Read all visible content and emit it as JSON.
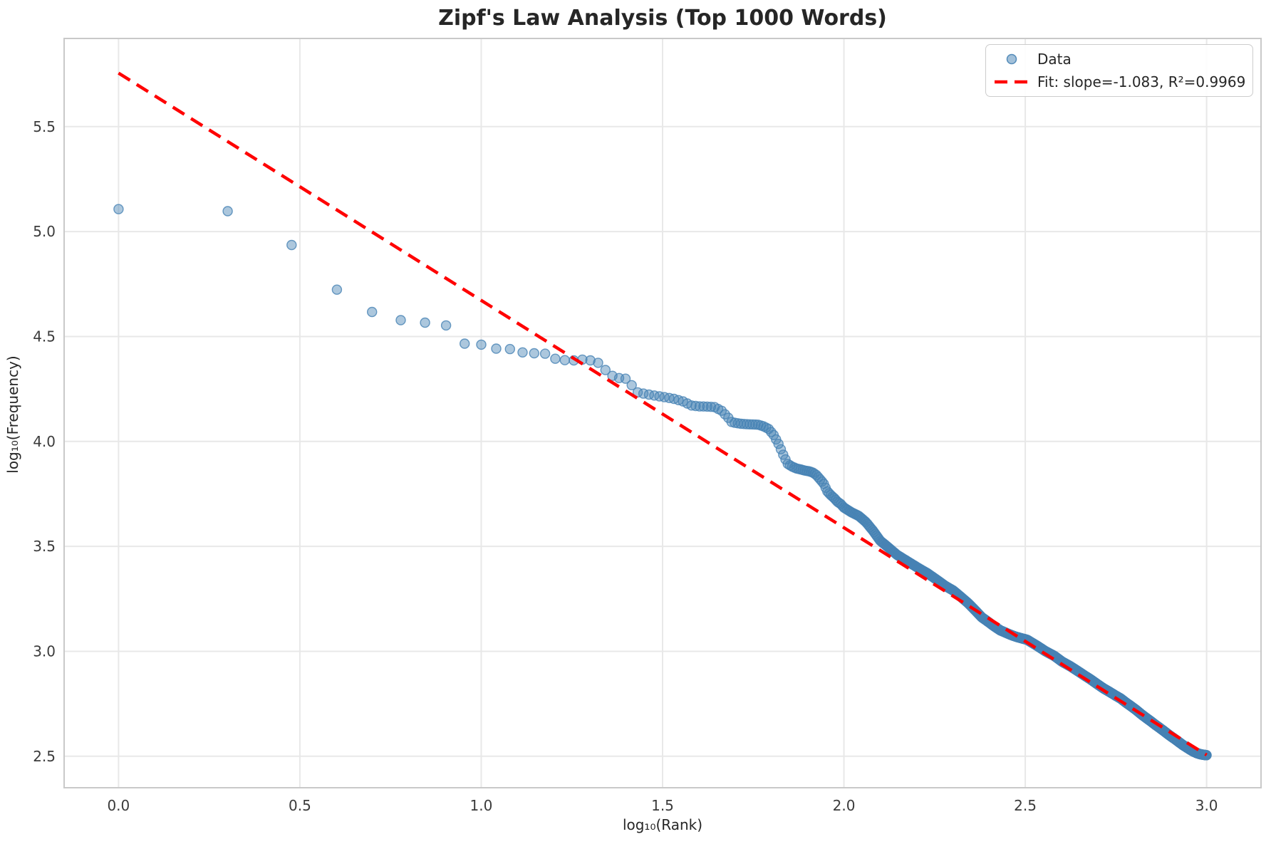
{
  "title": "Zipf's Law Analysis (Top 1000 Words)",
  "chart_data": {
    "type": "scatter",
    "title": "Zipf's Law Analysis (Top 1000 Words)",
    "xlabel": "log₁₀(Rank)",
    "ylabel": "log₁₀(Frequency)",
    "xlim": [
      -0.15,
      3.15
    ],
    "ylim": [
      2.35,
      5.92
    ],
    "x_ticks": [
      0.0,
      0.5,
      1.0,
      1.5,
      2.0,
      2.5,
      3.0
    ],
    "y_ticks": [
      2.5,
      3.0,
      3.5,
      4.0,
      4.5,
      5.0,
      5.5
    ],
    "grid": true,
    "legend_position": "upper right",
    "legend": {
      "entries": [
        {
          "label": "Data",
          "type": "marker"
        },
        {
          "label": "Fit: slope=-1.083, R²=0.9969",
          "type": "dashed-line"
        }
      ]
    },
    "colors": {
      "marker": "#4682B4",
      "marker_fill_opacity": 0.45,
      "marker_edge_opacity": 0.8,
      "fit_line": "#ff0000",
      "grid": "#e8e8e8",
      "spine": "#c9c9c9",
      "tick_text": "#3b3b3b",
      "text": "#262626",
      "background": "#ffffff"
    },
    "series": [
      {
        "name": "Data",
        "type": "scatter",
        "n_points": 1000,
        "x_definition": "log10(rank), rank = 1..1000",
        "anchors": [
          [
            0.0,
            5.107
          ],
          [
            0.301,
            5.097
          ],
          [
            0.477,
            4.936
          ],
          [
            0.602,
            4.723
          ],
          [
            0.699,
            4.617
          ],
          [
            0.778,
            4.578
          ],
          [
            0.845,
            4.566
          ],
          [
            0.903,
            4.553
          ],
          [
            0.954,
            4.466
          ],
          [
            1.0,
            4.461
          ],
          [
            1.041,
            4.442
          ],
          [
            1.079,
            4.44
          ],
          [
            1.114,
            4.424
          ],
          [
            1.146,
            4.42
          ],
          [
            1.176,
            4.418
          ],
          [
            1.204,
            4.394
          ],
          [
            1.23,
            4.387
          ],
          [
            1.255,
            4.386
          ],
          [
            1.279,
            4.39
          ],
          [
            1.301,
            4.386
          ],
          [
            1.322,
            4.375
          ],
          [
            1.342,
            4.341
          ],
          [
            1.362,
            4.312
          ],
          [
            1.38,
            4.302
          ],
          [
            1.398,
            4.299
          ],
          [
            1.415,
            4.268
          ],
          [
            1.431,
            4.234
          ],
          [
            1.447,
            4.228
          ],
          [
            1.477,
            4.219
          ],
          [
            1.505,
            4.211
          ],
          [
            1.531,
            4.203
          ],
          [
            1.556,
            4.191
          ],
          [
            1.58,
            4.171
          ],
          [
            1.602,
            4.167
          ],
          [
            1.623,
            4.166
          ],
          [
            1.643,
            4.164
          ],
          [
            1.663,
            4.146
          ],
          [
            1.681,
            4.113
          ],
          [
            1.69,
            4.093
          ],
          [
            1.699,
            4.089
          ],
          [
            1.716,
            4.084
          ],
          [
            1.732,
            4.082
          ],
          [
            1.748,
            4.081
          ],
          [
            1.763,
            4.08
          ],
          [
            1.778,
            4.072
          ],
          [
            1.792,
            4.06
          ],
          [
            1.806,
            4.031
          ],
          [
            1.82,
            3.987
          ],
          [
            1.833,
            3.935
          ],
          [
            1.845,
            3.893
          ],
          [
            1.857,
            3.88
          ],
          [
            1.869,
            3.871
          ],
          [
            1.88,
            3.867
          ],
          [
            1.892,
            3.861
          ],
          [
            1.903,
            3.858
          ],
          [
            1.914,
            3.852
          ],
          [
            1.924,
            3.84
          ],
          [
            1.934,
            3.82
          ],
          [
            1.944,
            3.8
          ],
          [
            1.954,
            3.762
          ],
          [
            1.964,
            3.744
          ],
          [
            1.973,
            3.73
          ],
          [
            1.982,
            3.713
          ],
          [
            1.991,
            3.702
          ],
          [
            2.0,
            3.685
          ],
          [
            2.02,
            3.663
          ],
          [
            2.041,
            3.645
          ],
          [
            2.061,
            3.615
          ],
          [
            2.08,
            3.575
          ],
          [
            2.1,
            3.527
          ],
          [
            2.121,
            3.497
          ],
          [
            2.146,
            3.46
          ],
          [
            2.176,
            3.428
          ],
          [
            2.204,
            3.398
          ],
          [
            2.23,
            3.372
          ],
          [
            2.255,
            3.342
          ],
          [
            2.279,
            3.312
          ],
          [
            2.301,
            3.29
          ],
          [
            2.322,
            3.26
          ],
          [
            2.342,
            3.23
          ],
          [
            2.362,
            3.195
          ],
          [
            2.38,
            3.162
          ],
          [
            2.398,
            3.14
          ],
          [
            2.415,
            3.118
          ],
          [
            2.431,
            3.1
          ],
          [
            2.447,
            3.088
          ],
          [
            2.462,
            3.077
          ],
          [
            2.477,
            3.068
          ],
          [
            2.505,
            3.055
          ],
          [
            2.531,
            3.028
          ],
          [
            2.556,
            3.0
          ],
          [
            2.58,
            2.978
          ],
          [
            2.602,
            2.95
          ],
          [
            2.623,
            2.93
          ],
          [
            2.643,
            2.908
          ],
          [
            2.663,
            2.885
          ],
          [
            2.681,
            2.865
          ],
          [
            2.699,
            2.843
          ],
          [
            2.716,
            2.823
          ],
          [
            2.732,
            2.807
          ],
          [
            2.748,
            2.79
          ],
          [
            2.763,
            2.775
          ],
          [
            2.778,
            2.755
          ],
          [
            2.792,
            2.738
          ],
          [
            2.806,
            2.72
          ],
          [
            2.82,
            2.7
          ],
          [
            2.833,
            2.683
          ],
          [
            2.845,
            2.668
          ],
          [
            2.857,
            2.652
          ],
          [
            2.869,
            2.637
          ],
          [
            2.88,
            2.623
          ],
          [
            2.892,
            2.607
          ],
          [
            2.903,
            2.593
          ],
          [
            2.914,
            2.58
          ],
          [
            2.924,
            2.567
          ],
          [
            2.934,
            2.554
          ],
          [
            2.944,
            2.543
          ],
          [
            2.954,
            2.532
          ],
          [
            2.964,
            2.522
          ],
          [
            2.973,
            2.515
          ],
          [
            2.982,
            2.51
          ],
          [
            2.991,
            2.507
          ],
          [
            3.0,
            2.505
          ]
        ]
      },
      {
        "name": "Fit",
        "type": "line",
        "style": "dashed",
        "slope": -1.083,
        "intercept": 5.755,
        "r_squared": 0.9969,
        "x_range": [
          0.0,
          3.0
        ]
      }
    ]
  }
}
